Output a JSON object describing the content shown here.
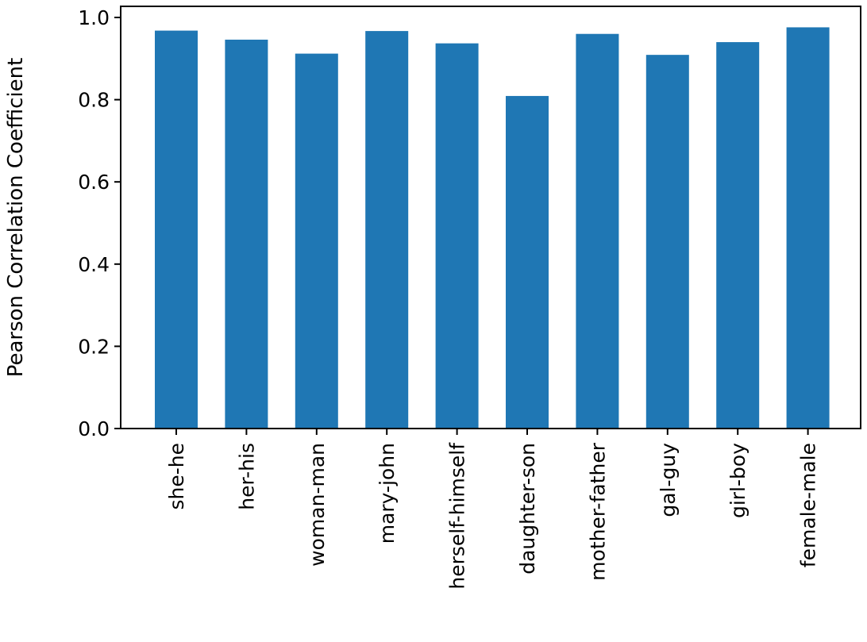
{
  "chart_data": {
    "type": "bar",
    "title": "",
    "xlabel": "",
    "ylabel": "Pearson Correlation Coefficient",
    "categories": [
      "she-he",
      "her-his",
      "woman-man",
      "mary-john",
      "herself-himself",
      "daughter-son",
      "mother-father",
      "gal-guy",
      "girl-boy",
      "female-male"
    ],
    "values": [
      0.968,
      0.946,
      0.912,
      0.967,
      0.937,
      0.809,
      0.96,
      0.909,
      0.94,
      0.976
    ],
    "ylim": [
      0,
      1.0
    ],
    "yticks": [
      "0.0",
      "0.2",
      "0.4",
      "0.6",
      "0.8",
      "1.0"
    ],
    "grid": false,
    "legend": "none",
    "bar_color": "#1f77b4",
    "axis_color": "#000000"
  }
}
